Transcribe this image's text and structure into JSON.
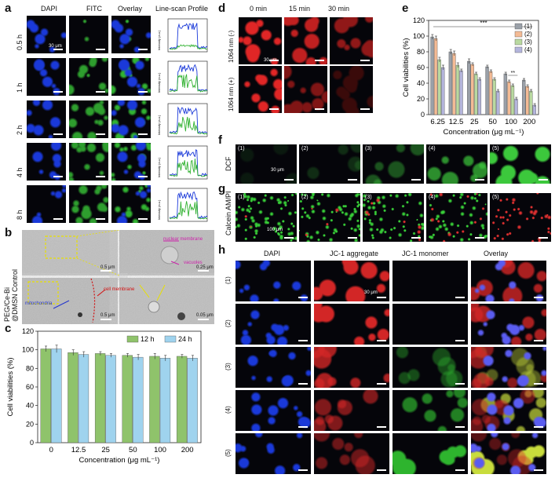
{
  "panels": {
    "a": "a",
    "b": "b",
    "c": "c",
    "d": "d",
    "e": "e",
    "f": "f",
    "g": "g",
    "h": "h"
  },
  "panel_a": {
    "cols": [
      "DAPI",
      "FITC",
      "Overlay",
      "Line-scan Profile"
    ],
    "rows": [
      "0.5 h",
      "1 h",
      "2 h",
      "4 h",
      "8 h"
    ],
    "scale": "30 μm",
    "profile_ylabel": "Intensity (a.u.)"
  },
  "panel_b": {
    "rows": [
      "Control",
      "PEG/Ce-Bi\n@DMSN"
    ],
    "row1": "PEG/Ce-Bi",
    "row2": "@DMSN",
    "annot_nuclear": "nuclear membrane",
    "annot_vacuoles": "vacuoles",
    "annot_cell": "cell membrane",
    "annot_mito": "mitochondria",
    "scale_big": "0.5 μm",
    "scale_small": "0.25 μm",
    "scale_small2": "0.05 μm"
  },
  "panel_d": {
    "cols": [
      "0 min",
      "15 min",
      "30 min"
    ],
    "rows": [
      "1064 nm (-)",
      "1064 nm (+)"
    ],
    "scale": "30 μm"
  },
  "panel_f": {
    "row": "DCF",
    "tiles": [
      "(1)",
      "(2)",
      "(3)",
      "(4)",
      "(5)"
    ],
    "scale": "30 μm"
  },
  "panel_g": {
    "row": "Calcein AM/PI",
    "tiles": [
      "(1)",
      "(2)",
      "(3)",
      "(4)",
      "(5)"
    ],
    "scale": "100 μm"
  },
  "panel_h": {
    "cols": [
      "DAPI",
      "JC-1 aggregate",
      "JC-1 monomer",
      "Overlay"
    ],
    "rows": [
      "(1)",
      "(2)",
      "(3)",
      "(4)",
      "(5)"
    ],
    "scale": "30 μm"
  },
  "chart_data": [
    {
      "id": "c",
      "type": "bar",
      "categories": [
        "0",
        "12.5",
        "25",
        "50",
        "100",
        "200"
      ],
      "series": [
        {
          "name": "12 h",
          "values": [
            101,
            97,
            96,
            94,
            93,
            93
          ],
          "err": [
            3,
            3,
            2,
            2,
            3,
            2
          ],
          "color": "#8fc36b"
        },
        {
          "name": "24 h",
          "values": [
            101,
            95,
            94,
            92,
            91,
            91
          ],
          "err": [
            4,
            3,
            2,
            3,
            3,
            3
          ],
          "color": "#9fd3ee"
        }
      ],
      "xlabel": "Concentration (μg mL⁻¹)",
      "ylabel": "Cell viabilities (%)",
      "ylim": [
        0,
        120
      ],
      "yticks": [
        0,
        20,
        40,
        60,
        80,
        100,
        120
      ],
      "legend": "top-right"
    },
    {
      "id": "e",
      "type": "bar",
      "categories": [
        "6.25",
        "12.5",
        "25",
        "50",
        "100",
        "200"
      ],
      "series": [
        {
          "name": "(1)",
          "values": [
            99,
            80,
            68,
            61,
            52,
            44
          ],
          "err": [
            3,
            3,
            3,
            2,
            2,
            2
          ],
          "color": "#9aa0a8"
        },
        {
          "name": "(2)",
          "values": [
            97,
            78,
            64,
            55,
            42,
            36
          ],
          "err": [
            3,
            3,
            2,
            2,
            2,
            2
          ],
          "color": "#f4bb95"
        },
        {
          "name": "(3)",
          "values": [
            70,
            63,
            52,
            45,
            37,
            30
          ],
          "err": [
            3,
            3,
            2,
            2,
            2,
            2
          ],
          "color": "#b9d9a0"
        },
        {
          "name": "(4)",
          "values": [
            60,
            56,
            45,
            30,
            20,
            12
          ],
          "err": [
            3,
            2,
            2,
            2,
            2,
            2
          ],
          "color": "#b4b5dc"
        }
      ],
      "xlabel": "Concentration (μg mL⁻¹)",
      "ylabel": "Cell viabilities (%)",
      "ylim": [
        0,
        120
      ],
      "yticks": [
        0,
        20,
        40,
        60,
        80,
        100,
        120
      ],
      "sig_main": "***",
      "sig_small": "**",
      "legend": "top-right"
    }
  ]
}
